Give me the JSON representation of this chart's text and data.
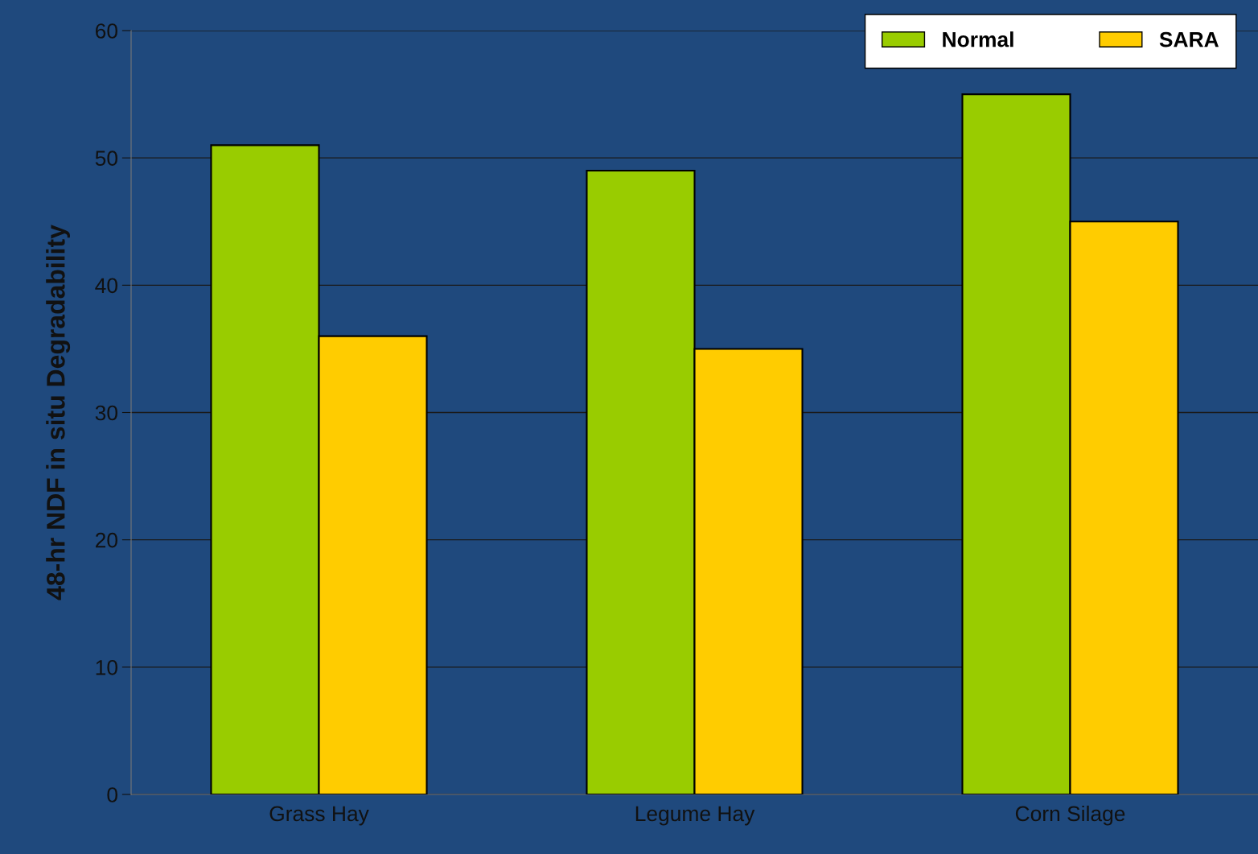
{
  "chart_data": {
    "type": "bar",
    "ylabel": "48-hr NDF in situ Degradability",
    "categories": [
      "Grass Hay",
      "Legume Hay",
      "Corn Silage"
    ],
    "series": [
      {
        "name": "Normal",
        "color": "#99cc00",
        "values": [
          51,
          49,
          55
        ]
      },
      {
        "name": "SARA",
        "color": "#ffcc00",
        "values": [
          36,
          35,
          45
        ]
      }
    ],
    "ylim": [
      0,
      60
    ],
    "yticks": [
      0,
      10,
      20,
      30,
      40,
      50,
      60
    ],
    "grid": "y",
    "legend": "top right"
  }
}
